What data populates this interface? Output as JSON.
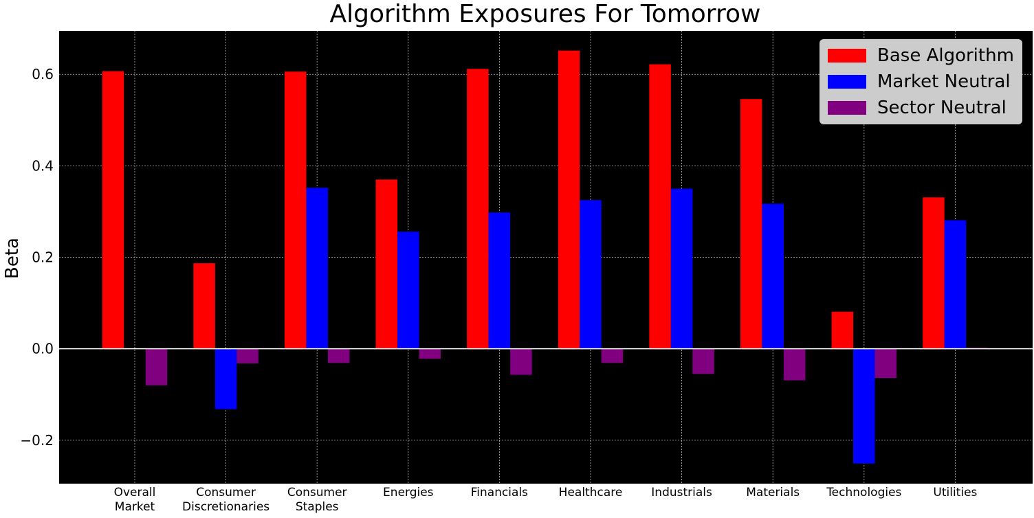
{
  "chart_data": {
    "type": "bar",
    "title": "Algorithm Exposures For Tomorrow",
    "xlabel": "",
    "ylabel": "Beta",
    "categories": [
      [
        "Overall",
        "Market"
      ],
      [
        "Consumer",
        "Discretionaries"
      ],
      [
        "Consumer",
        "Staples"
      ],
      [
        "Energies"
      ],
      [
        "Financials"
      ],
      [
        "Healthcare"
      ],
      [
        "Industrials"
      ],
      [
        "Materials"
      ],
      [
        "Technologies"
      ],
      [
        "Utilities"
      ]
    ],
    "series": [
      {
        "name": "Base Algorithm",
        "color": "#ff0000",
        "values": [
          0.607,
          0.187,
          0.606,
          0.37,
          0.612,
          0.652,
          0.622,
          0.546,
          0.081,
          0.331
        ]
      },
      {
        "name": "Market Neutral",
        "color": "#0000ff",
        "values": [
          0.0,
          -0.132,
          0.352,
          0.256,
          0.298,
          0.325,
          0.35,
          0.317,
          -0.251,
          0.281
        ]
      },
      {
        "name": "Sector Neutral",
        "color": "#800080",
        "values": [
          -0.08,
          -0.032,
          -0.031,
          -0.022,
          -0.057,
          -0.031,
          -0.055,
          -0.069,
          -0.064,
          0.002
        ]
      }
    ],
    "ylim": [
      -0.295,
      0.695
    ],
    "yticks": [
      -0.2,
      0.0,
      0.2,
      0.4,
      0.6
    ],
    "ytick_labels": [
      "−0.2",
      "0.0",
      "0.2",
      "0.4",
      "0.6"
    ],
    "grid": true,
    "legend_position": "top-right",
    "colors": {
      "plot_background": "#000000",
      "grid": "#bbbbbb",
      "zero_line": "#ffffff"
    }
  }
}
